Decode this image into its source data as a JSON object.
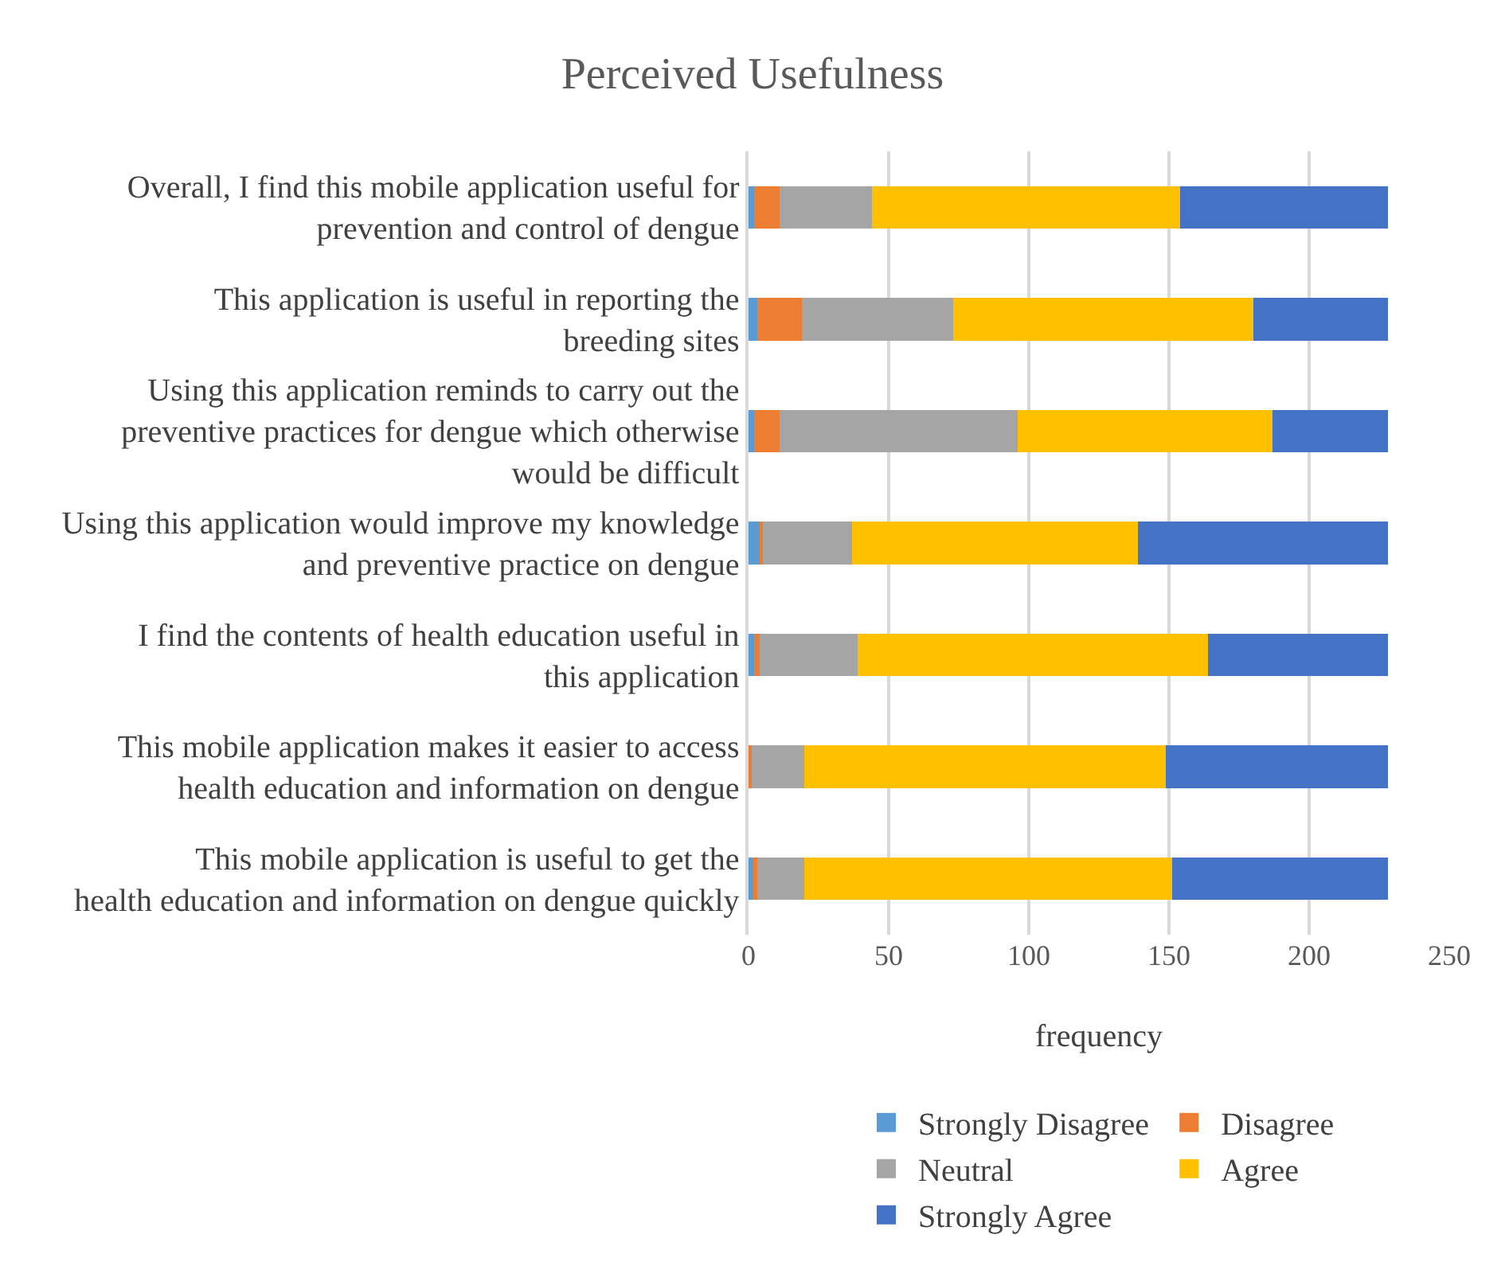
{
  "chart_data": {
    "type": "bar",
    "title": "Perceived Usefulness",
    "xlabel": "frequency",
    "orientation": "horizontal",
    "stacked": true,
    "categories": [
      "Overall, I find this mobile application useful for prevention and control of dengue",
      "This application is useful in reporting the breeding sites",
      "Using this application reminds to carry out the preventive practices for dengue which otherwise would be difficult",
      "Using this application would improve my knowledge and preventive practice on dengue",
      "I find the contents of health education useful in this application",
      "This mobile application makes it easier to access health education and information on dengue",
      "This mobile application is useful to get the health education and information on dengue quickly"
    ],
    "series": [
      {
        "name": "Strongly Disagree",
        "color": "#5b9bd5",
        "values": [
          2,
          3,
          2,
          4,
          2,
          0,
          2
        ]
      },
      {
        "name": "Disagree",
        "color": "#ed7d31",
        "values": [
          9,
          16,
          9,
          1,
          2,
          1,
          1
        ]
      },
      {
        "name": "Neutral",
        "color": "#a5a5a5",
        "values": [
          33,
          54,
          85,
          32,
          35,
          19,
          17
        ]
      },
      {
        "name": "Agree",
        "color": "#ffc000",
        "values": [
          110,
          107,
          91,
          102,
          125,
          129,
          131
        ]
      },
      {
        "name": "Strongly Agree",
        "color": "#4472c4",
        "values": [
          74,
          48,
          41,
          89,
          64,
          79,
          77
        ]
      }
    ],
    "xlim": [
      0,
      250
    ],
    "xticks": [
      0,
      50,
      100,
      150,
      200,
      250
    ],
    "grid": "x",
    "legend": "bottom"
  }
}
